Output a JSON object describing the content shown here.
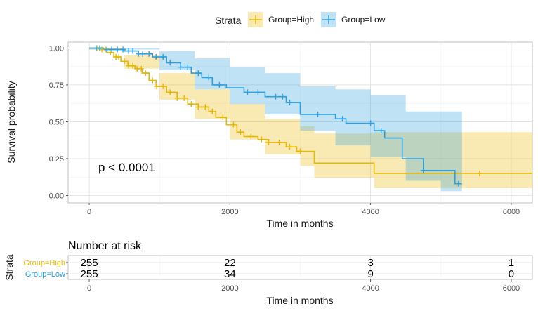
{
  "chart_data": {
    "type": "line",
    "subtype": "kaplan-meier",
    "xlabel": "Time in months",
    "ylabel": "Survival probability",
    "xlim": [
      -300,
      6300
    ],
    "ylim": [
      -0.05,
      1.04
    ],
    "xticks": [
      0,
      2000,
      4000,
      6000
    ],
    "yticks": [
      0.0,
      0.25,
      0.5,
      0.75,
      1.0
    ],
    "ytick_labels": [
      "0.00",
      "0.25",
      "0.50",
      "0.75",
      "1.00"
    ],
    "grid": true,
    "annotation": "p < 0.0001",
    "legend": {
      "title": "Strata",
      "position": "top",
      "entries": [
        {
          "label": "Group=High",
          "color": "#E7B800"
        },
        {
          "label": "Group=Low",
          "color": "#2E9FDF"
        }
      ]
    },
    "series": [
      {
        "name": "Group=High",
        "color": "#E7B800",
        "steps": [
          [
            0,
            1.0
          ],
          [
            150,
            0.99
          ],
          [
            250,
            0.97
          ],
          [
            350,
            0.94
          ],
          [
            450,
            0.91
          ],
          [
            550,
            0.88
          ],
          [
            650,
            0.86
          ],
          [
            750,
            0.83
          ],
          [
            850,
            0.78
          ],
          [
            950,
            0.74
          ],
          [
            1100,
            0.7
          ],
          [
            1250,
            0.66
          ],
          [
            1400,
            0.62
          ],
          [
            1550,
            0.6
          ],
          [
            1700,
            0.57
          ],
          [
            1800,
            0.53
          ],
          [
            1950,
            0.48
          ],
          [
            2100,
            0.43
          ],
          [
            2200,
            0.4
          ],
          [
            2400,
            0.38
          ],
          [
            2550,
            0.36
          ],
          [
            2800,
            0.33
          ],
          [
            2950,
            0.3
          ],
          [
            3200,
            0.22
          ],
          [
            4050,
            0.15
          ],
          [
            6300,
            0.15
          ]
        ],
        "upper": [
          [
            0,
            1.0
          ],
          [
            500,
            0.95
          ],
          [
            1000,
            0.83
          ],
          [
            1500,
            0.72
          ],
          [
            2000,
            0.62
          ],
          [
            2500,
            0.52
          ],
          [
            3000,
            0.47
          ],
          [
            3200,
            0.42
          ],
          [
            4050,
            0.43
          ],
          [
            6300,
            0.43
          ]
        ],
        "lower": [
          [
            0,
            0.99
          ],
          [
            500,
            0.86
          ],
          [
            1000,
            0.65
          ],
          [
            1500,
            0.52
          ],
          [
            2000,
            0.38
          ],
          [
            2500,
            0.28
          ],
          [
            3000,
            0.2
          ],
          [
            3200,
            0.12
          ],
          [
            4050,
            0.05
          ],
          [
            6300,
            0.05
          ]
        ],
        "censor_x": [
          120,
          180,
          230,
          300,
          380,
          420,
          500,
          560,
          620,
          680,
          740,
          800,
          900,
          960,
          1050,
          1150,
          1250,
          1350,
          1450,
          1550,
          1650,
          1750,
          1900,
          2050,
          2150,
          2300,
          2450,
          2550,
          2700,
          2850,
          3000,
          5550
        ]
      },
      {
        "name": "Group=Low",
        "color": "#2E9FDF",
        "steps": [
          [
            0,
            1.0
          ],
          [
            200,
            0.99
          ],
          [
            500,
            0.98
          ],
          [
            700,
            0.96
          ],
          [
            900,
            0.94
          ],
          [
            1100,
            0.9
          ],
          [
            1300,
            0.87
          ],
          [
            1450,
            0.83
          ],
          [
            1600,
            0.8
          ],
          [
            1750,
            0.75
          ],
          [
            1950,
            0.73
          ],
          [
            2200,
            0.7
          ],
          [
            2500,
            0.67
          ],
          [
            2800,
            0.63
          ],
          [
            3000,
            0.55
          ],
          [
            3500,
            0.52
          ],
          [
            3650,
            0.49
          ],
          [
            4050,
            0.44
          ],
          [
            4200,
            0.39
          ],
          [
            4450,
            0.25
          ],
          [
            4750,
            0.17
          ],
          [
            5200,
            0.08
          ],
          [
            5300,
            0.08
          ]
        ],
        "upper": [
          [
            0,
            1.0
          ],
          [
            1000,
            0.98
          ],
          [
            1500,
            0.93
          ],
          [
            2000,
            0.87
          ],
          [
            2500,
            0.83
          ],
          [
            3000,
            0.74
          ],
          [
            3500,
            0.72
          ],
          [
            4000,
            0.68
          ],
          [
            4500,
            0.57
          ],
          [
            5000,
            0.57
          ],
          [
            5300,
            0.57
          ]
        ],
        "lower": [
          [
            0,
            0.99
          ],
          [
            1000,
            0.85
          ],
          [
            1500,
            0.72
          ],
          [
            2000,
            0.62
          ],
          [
            2500,
            0.55
          ],
          [
            3000,
            0.44
          ],
          [
            3500,
            0.34
          ],
          [
            4000,
            0.26
          ],
          [
            4500,
            0.1
          ],
          [
            5000,
            0.03
          ],
          [
            5300,
            0.03
          ]
        ],
        "censor_x": [
          100,
          150,
          250,
          320,
          400,
          480,
          560,
          620,
          700,
          760,
          850,
          950,
          1050,
          1150,
          1300,
          1400,
          1550,
          1700,
          1850,
          2250,
          2400,
          2650,
          2750,
          2850,
          3250,
          3600,
          4000,
          4150,
          4750,
          5250
        ]
      }
    ],
    "risk_table": {
      "title": "Number at risk",
      "ylabel": "Strata",
      "xlabel": "Time in months",
      "times": [
        0,
        2000,
        4000,
        6000
      ],
      "rows": [
        {
          "label": "Group=High",
          "color": "#E7B800",
          "values": [
            "255",
            "22",
            "3",
            "1"
          ]
        },
        {
          "label": "Group=Low",
          "color": "#2E9FDF",
          "values": [
            "255",
            "34",
            "9",
            "0"
          ]
        }
      ]
    }
  }
}
